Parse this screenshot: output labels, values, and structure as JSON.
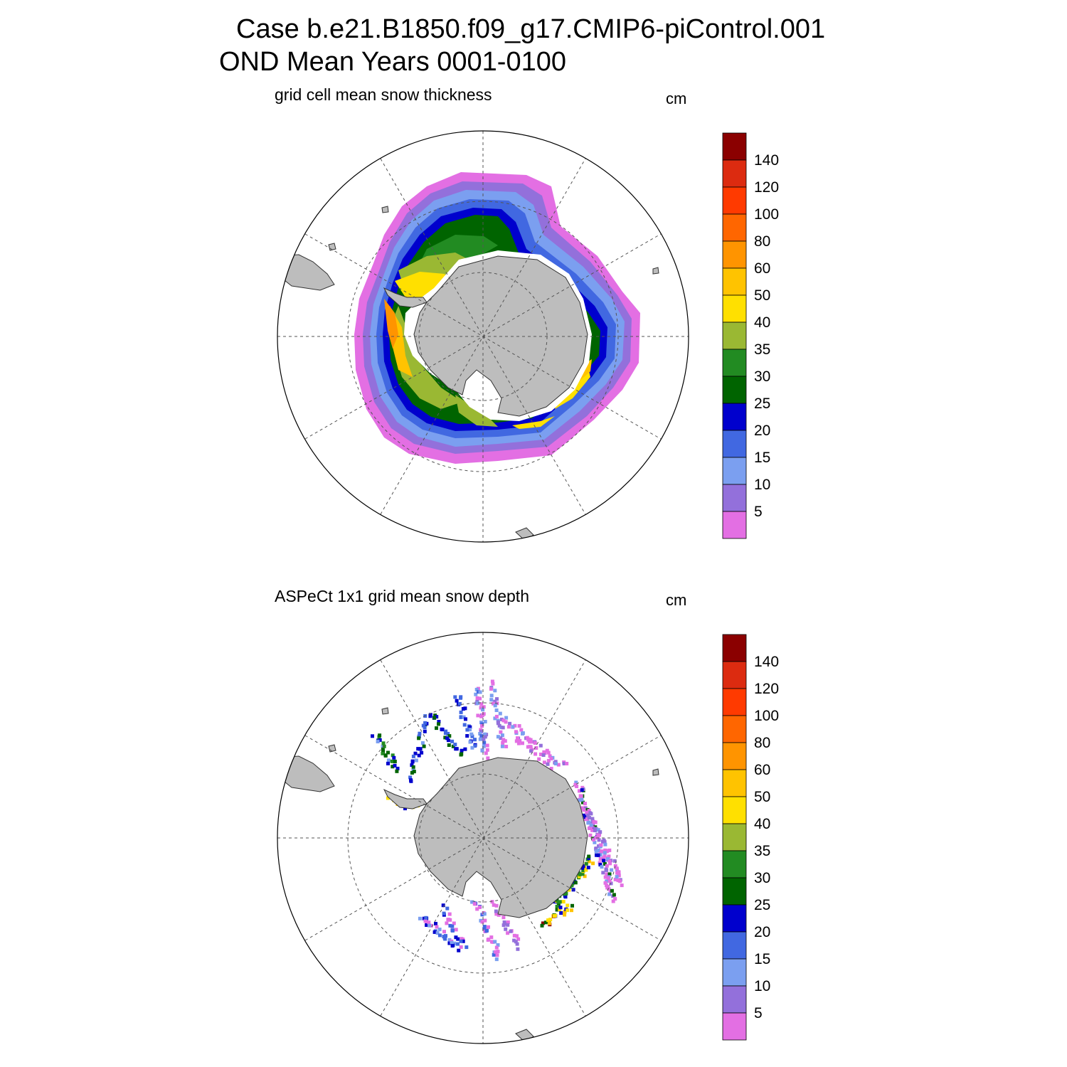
{
  "header": {
    "line1": "Case b.e21.B1850.f09_g17.CMIP6-piControl.001",
    "line2": "OND Mean   Years 0001-0100"
  },
  "colorbar": {
    "levels": [
      "5",
      "10",
      "15",
      "20",
      "25",
      "30",
      "35",
      "40",
      "50",
      "60",
      "80",
      "100",
      "120",
      "140"
    ],
    "colors": [
      "#e36fe3",
      "#9370db",
      "#7b9ff0",
      "#4168e1",
      "#0000cd",
      "#006400",
      "#228b22",
      "#9ab833",
      "#ffe000",
      "#ffc300",
      "#ff9400",
      "#ff6600",
      "#ff3a00",
      "#dc2b10",
      "#8b0000"
    ]
  },
  "panels": [
    {
      "id": "model",
      "title": "grid cell mean snow thickness",
      "units": "cm",
      "projection": "south-polar-stereographic",
      "grid": true
    },
    {
      "id": "obs",
      "title": "ASPeCt 1x1 grid mean snow depth",
      "units": "cm",
      "projection": "south-polar-stereographic",
      "grid": true
    }
  ]
}
